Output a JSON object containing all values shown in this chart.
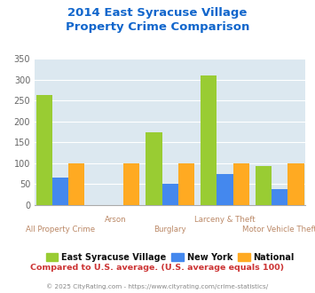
{
  "title": "2014 East Syracuse Village\nProperty Crime Comparison",
  "categories": [
    "All Property Crime",
    "Arson",
    "Burglary",
    "Larceny & Theft",
    "Motor Vehicle Theft"
  ],
  "series": {
    "East Syracuse Village": [
      262,
      0,
      175,
      310,
      93
    ],
    "New York": [
      65,
      0,
      50,
      75,
      38
    ],
    "National": [
      100,
      100,
      100,
      100,
      100
    ]
  },
  "colors": {
    "East Syracuse Village": "#99cc33",
    "New York": "#4488ee",
    "National": "#ffaa22"
  },
  "ylim": [
    0,
    350
  ],
  "yticks": [
    0,
    50,
    100,
    150,
    200,
    250,
    300,
    350
  ],
  "title_color": "#1166cc",
  "xlabel_color": "#bb8866",
  "bg_color": "#dce8f0",
  "footnote1": "Compared to U.S. average. (U.S. average equals 100)",
  "footnote2": "© 2025 CityRating.com - https://www.cityrating.com/crime-statistics/",
  "footnote1_color": "#cc3333",
  "footnote2_color": "#888888",
  "cat_labels_upper": [
    "Arson",
    "Larceny & Theft"
  ],
  "cat_labels_lower": [
    "All Property Crime",
    "Burglary",
    "Motor Vehicle Theft"
  ]
}
